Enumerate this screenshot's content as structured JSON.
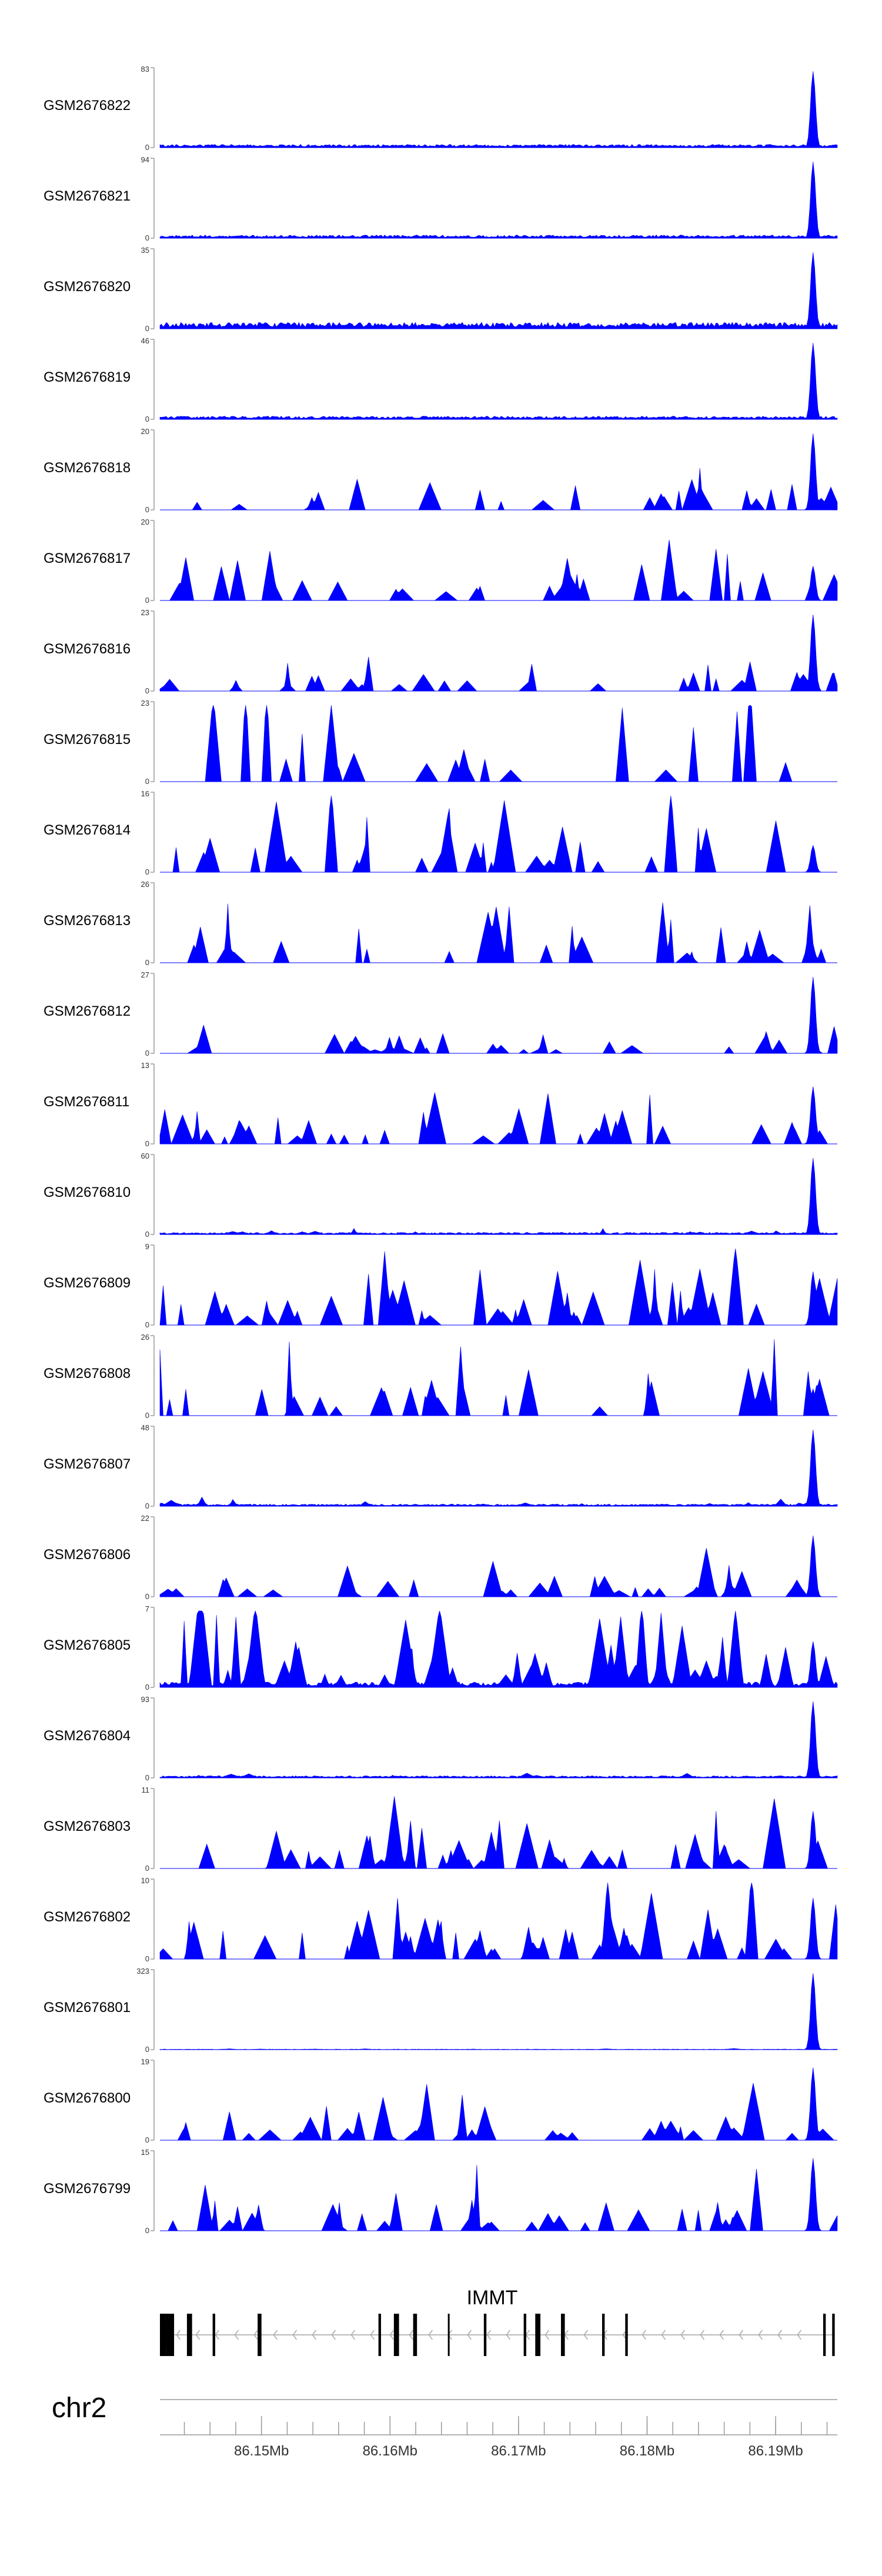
{
  "chart_data": {
    "type": "area",
    "title": "",
    "fill_color": "#0000ff",
    "axis_color": "#9a9a9a",
    "genome": {
      "chromosome": "chr2",
      "x_range": [
        86.1421,
        86.1948
      ],
      "x_tick_labels": [
        "86.15Mb",
        "86.16Mb",
        "86.17Mb",
        "86.18Mb",
        "86.19Mb"
      ],
      "x_tick_values": [
        86.15,
        86.16,
        86.17,
        86.18,
        86.19
      ],
      "minor_tick_step": 0.002
    },
    "gene": {
      "name": "IMMT",
      "strand": "-",
      "exons": [
        [
          86.1421,
          86.1426
        ],
        [
          86.1426,
          86.1432
        ],
        [
          86.1442,
          86.1446
        ],
        [
          86.1462,
          86.1464
        ],
        [
          86.1497,
          86.15
        ],
        [
          86.1591,
          86.1593
        ],
        [
          86.1603,
          86.1607
        ],
        [
          86.1618,
          86.1621
        ],
        [
          86.1645,
          86.1646
        ],
        [
          86.1673,
          86.1675
        ],
        [
          86.1704,
          86.1706
        ],
        [
          86.1713,
          86.1717
        ],
        [
          86.1733,
          86.1736
        ],
        [
          86.1765,
          86.1767
        ],
        [
          86.1783,
          86.1785
        ],
        [
          86.1937,
          86.1939
        ],
        [
          86.1944,
          86.1946
        ]
      ]
    },
    "series": [
      {
        "name": "GSM2676822",
        "ymax": 83,
        "peak_scale": 1.0,
        "base": 0.03,
        "noise": 0.02,
        "density": 0.4,
        "seed": 11
      },
      {
        "name": "GSM2676821",
        "ymax": 94,
        "peak_scale": 1.0,
        "base": 0.03,
        "noise": 0.02,
        "density": 0.4,
        "seed": 12
      },
      {
        "name": "GSM2676820",
        "ymax": 35,
        "peak_scale": 1.0,
        "base": 0.06,
        "noise": 0.04,
        "density": 0.5,
        "seed": 13
      },
      {
        "name": "GSM2676819",
        "ymax": 46,
        "peak_scale": 1.0,
        "base": 0.03,
        "noise": 0.03,
        "density": 0.4,
        "seed": 14
      },
      {
        "name": "GSM2676818",
        "ymax": 20,
        "peak_scale": 1.0,
        "base": 0.0,
        "noise": 0.35,
        "density": 0.45,
        "seed": 15
      },
      {
        "name": "GSM2676817",
        "ymax": 20,
        "peak_scale": 0.45,
        "base": 0.0,
        "noise": 0.55,
        "density": 0.55,
        "seed": 16
      },
      {
        "name": "GSM2676816",
        "ymax": 23,
        "peak_scale": 1.0,
        "base": 0.0,
        "noise": 0.35,
        "density": 0.5,
        "seed": 17
      },
      {
        "name": "GSM2676815",
        "ymax": 23,
        "peak_scale": 0.0,
        "base": 0.0,
        "noise": 0.75,
        "density": 0.35,
        "seed": 18
      },
      {
        "name": "GSM2676814",
        "ymax": 16,
        "peak_scale": 0.35,
        "base": 0.0,
        "noise": 0.65,
        "density": 0.5,
        "seed": 19
      },
      {
        "name": "GSM2676813",
        "ymax": 26,
        "peak_scale": 0.2,
        "base": 0.0,
        "noise": 0.55,
        "density": 0.45,
        "seed": 20
      },
      {
        "name": "GSM2676812",
        "ymax": 27,
        "peak_scale": 1.0,
        "base": 0.0,
        "noise": 0.2,
        "density": 0.55,
        "seed": 21
      },
      {
        "name": "GSM2676811",
        "ymax": 13,
        "peak_scale": 0.75,
        "base": 0.0,
        "noise": 0.45,
        "density": 0.6,
        "seed": 22
      },
      {
        "name": "GSM2676810",
        "ymax": 60,
        "peak_scale": 1.0,
        "base": 0.02,
        "noise": 0.05,
        "density": 0.5,
        "seed": 23
      },
      {
        "name": "GSM2676809",
        "ymax": 9,
        "peak_scale": 0.7,
        "base": 0.0,
        "noise": 0.6,
        "density": 0.7,
        "seed": 24
      },
      {
        "name": "GSM2676808",
        "ymax": 26,
        "peak_scale": 0.35,
        "base": 0.0,
        "noise": 0.55,
        "density": 0.5,
        "seed": 25
      },
      {
        "name": "GSM2676807",
        "ymax": 48,
        "peak_scale": 1.0,
        "base": 0.02,
        "noise": 0.07,
        "density": 0.5,
        "seed": 26
      },
      {
        "name": "GSM2676806",
        "ymax": 22,
        "peak_scale": 0.8,
        "base": 0.0,
        "noise": 0.35,
        "density": 0.55,
        "seed": 27
      },
      {
        "name": "GSM2676805",
        "ymax": 7,
        "peak_scale": 0.6,
        "base": 0.05,
        "noise": 0.7,
        "density": 0.8,
        "seed": 28
      },
      {
        "name": "GSM2676804",
        "ymax": 93,
        "peak_scale": 1.0,
        "base": 0.02,
        "noise": 0.04,
        "density": 0.5,
        "seed": 29
      },
      {
        "name": "GSM2676803",
        "ymax": 11,
        "peak_scale": 0.75,
        "base": 0.0,
        "noise": 0.55,
        "density": 0.7,
        "seed": 30
      },
      {
        "name": "GSM2676802",
        "ymax": 10,
        "peak_scale": 0.8,
        "base": 0.0,
        "noise": 0.65,
        "density": 0.75,
        "seed": 31
      },
      {
        "name": "GSM2676801",
        "ymax": 323,
        "peak_scale": 1.0,
        "base": 0.005,
        "noise": 0.008,
        "density": 0.3,
        "seed": 32
      },
      {
        "name": "GSM2676800",
        "ymax": 19,
        "peak_scale": 0.95,
        "base": 0.0,
        "noise": 0.45,
        "density": 0.6,
        "seed": 33
      },
      {
        "name": "GSM2676799",
        "ymax": 15,
        "peak_scale": 0.95,
        "base": 0.0,
        "noise": 0.5,
        "density": 0.65,
        "seed": 34
      }
    ]
  }
}
